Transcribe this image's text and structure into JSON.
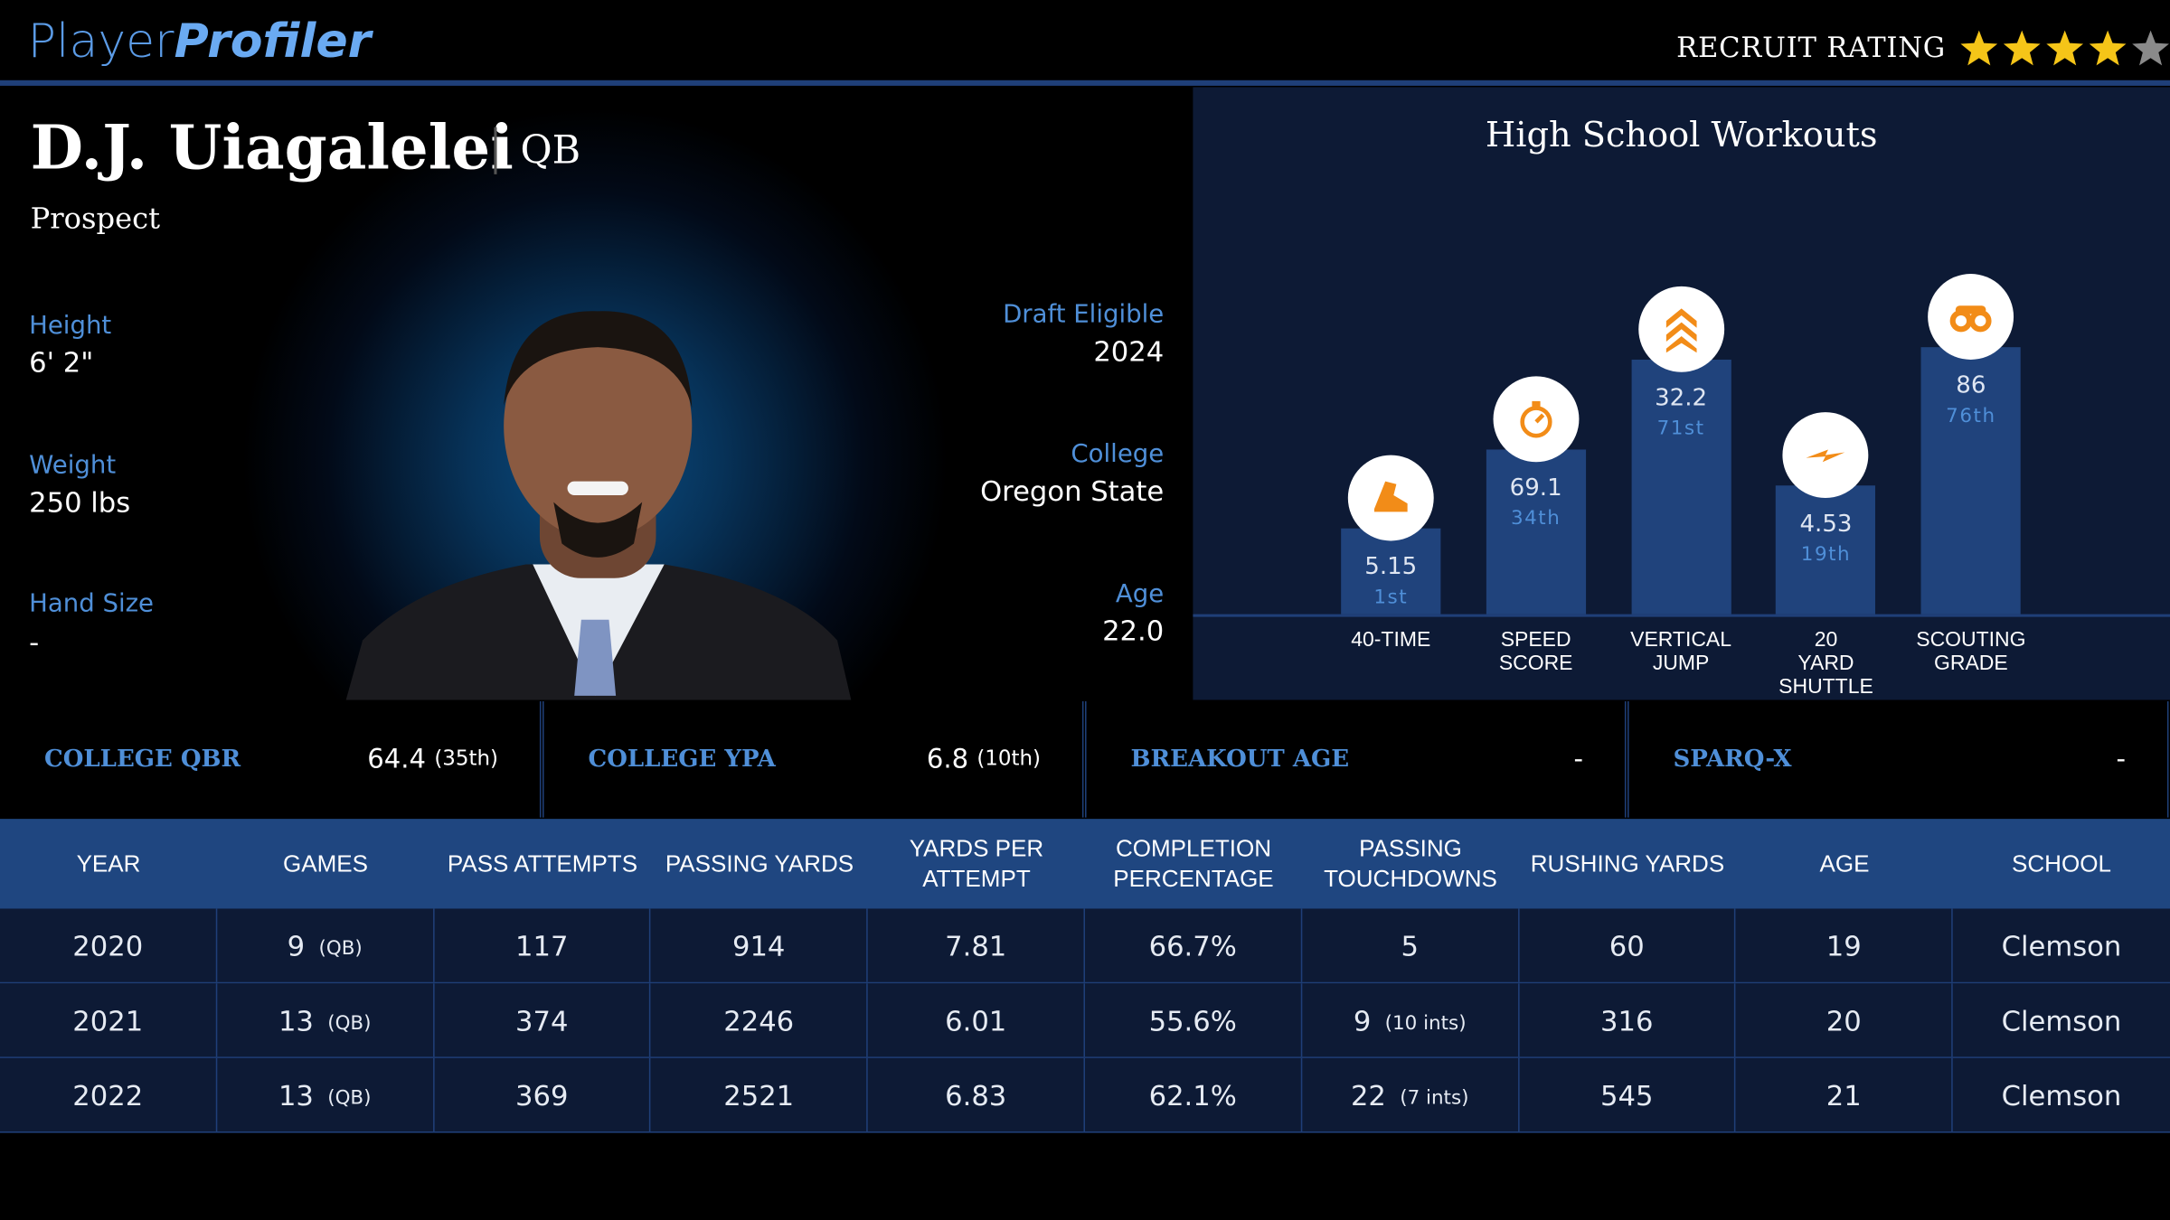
{
  "header": {
    "logo_part1": "Player",
    "logo_part2": "Profiler",
    "recruit_label": "RECRUIT RATING",
    "recruit_stars": 4,
    "recruit_stars_max": 5
  },
  "player": {
    "name": "D.J. Uiagalelei",
    "position": "QB",
    "status": "Prospect",
    "height_label": "Height",
    "height": "6' 2\"",
    "weight_label": "Weight",
    "weight": "250 lbs",
    "hand_label": "Hand Size",
    "hand": "-",
    "draft_label": "Draft Eligible",
    "draft": 2024,
    "college_label": "College",
    "college": "Oregon State",
    "age_label": "Age",
    "age": "22.0"
  },
  "workouts": {
    "title": "High School Workouts",
    "items": [
      {
        "label": "40-TIME",
        "value": 5.15,
        "percentile": 1,
        "percentile_label": "1st"
      },
      {
        "label": "SPEED SCORE",
        "value": 69.1,
        "percentile": 34,
        "percentile_label": "34th"
      },
      {
        "label": "VERTICAL JUMP",
        "value": 32.2,
        "percentile": 71,
        "percentile_label": "71st"
      },
      {
        "label": "20 YARD SHUTTLE",
        "value": 4.53,
        "percentile": 19,
        "percentile_label": "19th"
      },
      {
        "label": "SCOUTING GRADE",
        "value": 86,
        "percentile": 76,
        "percentile_label": "76th"
      }
    ]
  },
  "stats": [
    {
      "label": "COLLEGE QBR",
      "value": 64.4,
      "rank": "(35th)"
    },
    {
      "label": "COLLEGE YPA",
      "value": 6.8,
      "rank": "(10th)"
    },
    {
      "label": "BREAKOUT AGE",
      "value": "-"
    },
    {
      "label": "SPARQ-X",
      "value": "-"
    }
  ],
  "table": {
    "columns": [
      "YEAR",
      "GAMES",
      "PASS ATTEMPTS",
      "PASSING YARDS",
      "YARDS PER ATTEMPT",
      "COMPLETION PERCENTAGE",
      "PASSING TOUCHDOWNS",
      "RUSHING YARDS",
      "AGE",
      "SCHOOL"
    ],
    "rows": [
      [
        2020,
        {
          "value": 9,
          "note": "(QB)"
        },
        117,
        914,
        7.81,
        "66.7%",
        {
          "value": 5
        },
        60,
        19,
        "Clemson"
      ],
      [
        2021,
        {
          "value": 13,
          "note": "(QB)"
        },
        374,
        2246,
        6.01,
        "55.6%",
        {
          "value": 9,
          "note": "(10 ints)"
        },
        316,
        20,
        "Clemson"
      ],
      [
        2022,
        {
          "value": 13,
          "note": "(QB)"
        },
        369,
        2521,
        6.83,
        "62.1%",
        {
          "value": 22,
          "note": "(7 ints)"
        },
        545,
        21,
        "Clemson"
      ]
    ]
  }
}
